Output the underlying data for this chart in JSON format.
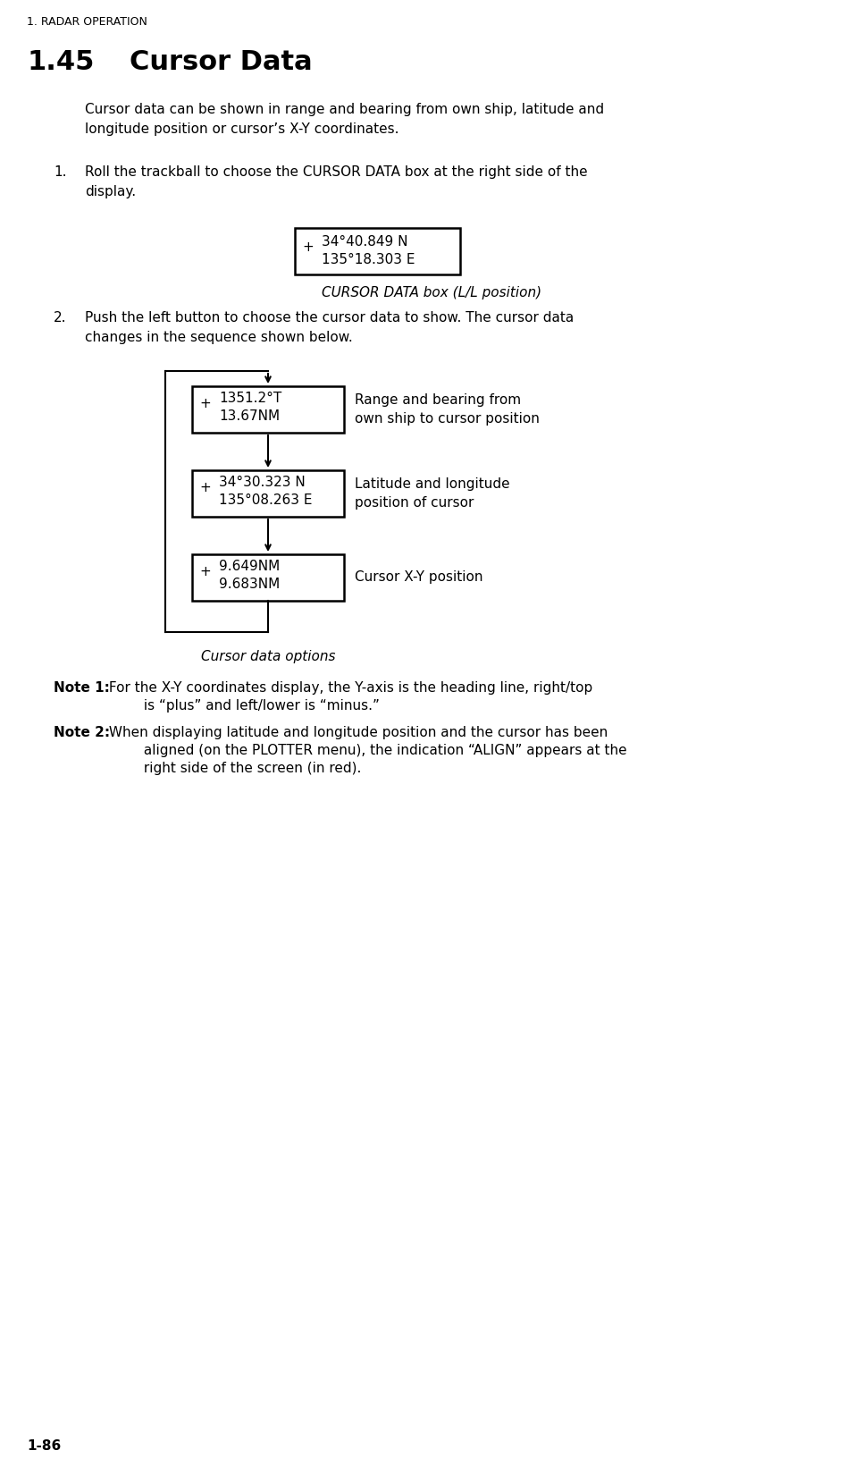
{
  "bg_color": "#ffffff",
  "header": "1. RADAR OPERATION",
  "section_num": "1.45",
  "section_title": "Cursor Data",
  "intro_text": "Cursor data can be shown in range and bearing from own ship, latitude and\nlongitude position or cursor’s X-Y coordinates.",
  "step1_text": "Roll the trackball to choose the CURSOR DATA box at the right side of the\ndisplay.",
  "step2_text": "Push the left button to choose the cursor data to show. The cursor data\nchanges in the sequence shown below.",
  "box1_line1": "34°40.849 N",
  "box1_line2": "135°18.303 E",
  "box1_caption": "CURSOR DATA box (L/L position)",
  "diag_box1_line1": "1351.2°T",
  "diag_box1_line2": "13.67NM",
  "diag_box1_label": "Range and bearing from\nown ship to cursor position",
  "diag_box2_line1": "34°30.323 N",
  "diag_box2_line2": "135°08.263 E",
  "diag_box2_label": "Latitude and longitude\nposition of cursor",
  "diag_box3_line1": "9.649NM",
  "diag_box3_line2": "9.683NM",
  "diag_box3_label": "Cursor X-Y position",
  "diag_caption": "Cursor data options",
  "note1_bold": "Note 1:",
  "note1_text": " For the X-Y coordinates display, the Y-axis is the heading line, right/top\n         is “plus” and left/lower is “minus.”",
  "note2_bold": "Note 2:",
  "note2_text": " When displaying latitude and longitude position and the cursor has been\n         aligned (on the PLOTTER menu), the indication “ALIGN” appears at the\n         right side of the screen (in red).",
  "footer": "1-86",
  "font_family": "DejaVu Sans"
}
